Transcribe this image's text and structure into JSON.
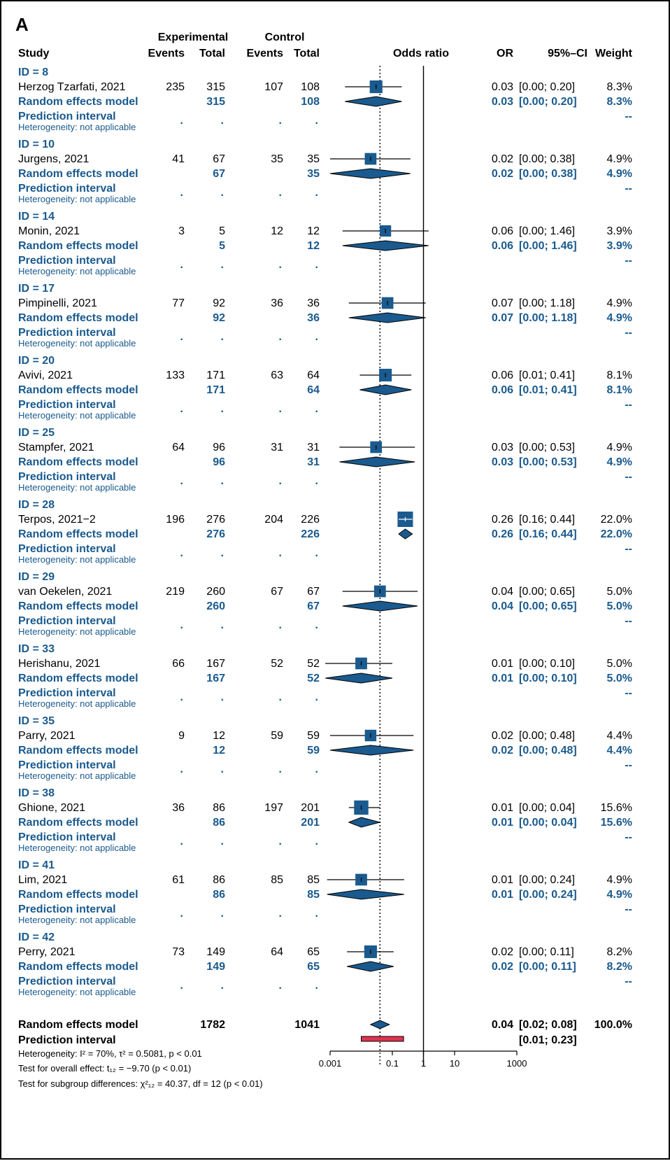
{
  "panel_label": "A",
  "header": {
    "experimental": "Experimental",
    "control": "Control",
    "study": "Study",
    "events": "Events",
    "total": "Total",
    "odds_ratio": "Odds ratio",
    "or": "OR",
    "ci": "95%–CI",
    "weight": "Weight"
  },
  "labels": {
    "re_model": "Random effects model",
    "pred_interval": "Prediction interval",
    "heterogeneity_na": "Heterogeneity: not applicable",
    "dot": ".",
    "dashes": "--"
  },
  "colors": {
    "blue": "#1a5a8e",
    "box": "#1a5a8e",
    "pred_bar": "#e0334f",
    "black": "#000000"
  },
  "chart_data": {
    "type": "forest",
    "x_scale": "log",
    "xlim": [
      0.001,
      1000
    ],
    "x_ticks": [
      "0.001",
      "0.1",
      "1",
      "10",
      "1000"
    ],
    "x_tick_values": [
      0.001,
      0.1,
      1,
      10,
      1000
    ],
    "null_line": 1,
    "pooled_line": 0.04,
    "groups": [
      {
        "id": "ID = 8",
        "study": "Herzog Tzarfati, 2021",
        "e_events": "235",
        "e_total": "315",
        "c_events": "107",
        "c_total": "108",
        "or": 0.03,
        "lo": 0.003,
        "hi": 0.2,
        "or_text": "0.03",
        "ci_text": "[0.00; 0.20]",
        "weight": "8.3%",
        "weight_num": 8.3
      },
      {
        "id": "ID = 10",
        "study": "Jurgens, 2021",
        "e_events": "41",
        "e_total": "67",
        "c_events": "35",
        "c_total": "35",
        "or": 0.02,
        "lo": 0.001,
        "hi": 0.38,
        "or_text": "0.02",
        "ci_text": "[0.00; 0.38]",
        "weight": "4.9%",
        "weight_num": 4.9
      },
      {
        "id": "ID = 14",
        "study": "Monin, 2021",
        "e_events": "3",
        "e_total": "5",
        "c_events": "12",
        "c_total": "12",
        "or": 0.06,
        "lo": 0.0025,
        "hi": 1.46,
        "or_text": "0.06",
        "ci_text": "[0.00; 1.46]",
        "weight": "3.9%",
        "weight_num": 3.9
      },
      {
        "id": "ID = 17",
        "study": "Pimpinelli, 2021",
        "e_events": "77",
        "e_total": "92",
        "c_events": "36",
        "c_total": "36",
        "or": 0.07,
        "lo": 0.004,
        "hi": 1.18,
        "or_text": "0.07",
        "ci_text": "[0.00; 1.18]",
        "weight": "4.9%",
        "weight_num": 4.9
      },
      {
        "id": "ID = 20",
        "study": "Avivi, 2021",
        "e_events": "133",
        "e_total": "171",
        "c_events": "63",
        "c_total": "64",
        "or": 0.06,
        "lo": 0.009,
        "hi": 0.41,
        "or_text": "0.06",
        "ci_text": "[0.01; 0.41]",
        "weight": "8.1%",
        "weight_num": 8.1
      },
      {
        "id": "ID = 25",
        "study": "Stampfer, 2021",
        "e_events": "64",
        "e_total": "96",
        "c_events": "31",
        "c_total": "31",
        "or": 0.03,
        "lo": 0.002,
        "hi": 0.53,
        "or_text": "0.03",
        "ci_text": "[0.00; 0.53]",
        "weight": "4.9%",
        "weight_num": 4.9
      },
      {
        "id": "ID = 28",
        "study": "Terpos, 2021−2",
        "e_events": "196",
        "e_total": "276",
        "c_events": "204",
        "c_total": "226",
        "or": 0.26,
        "lo": 0.16,
        "hi": 0.44,
        "or_text": "0.26",
        "ci_text": "[0.16; 0.44]",
        "weight": "22.0%",
        "weight_num": 22.0
      },
      {
        "id": "ID = 29",
        "study": "van Oekelen, 2021",
        "e_events": "219",
        "e_total": "260",
        "c_events": "67",
        "c_total": "67",
        "or": 0.04,
        "lo": 0.0025,
        "hi": 0.65,
        "or_text": "0.04",
        "ci_text": "[0.00; 0.65]",
        "weight": "5.0%",
        "weight_num": 5.0
      },
      {
        "id": "ID = 33",
        "study": "Herishanu, 2021",
        "e_events": "66",
        "e_total": "167",
        "c_events": "52",
        "c_total": "52",
        "or": 0.01,
        "lo": 0.0007,
        "hi": 0.1,
        "or_text": "0.01",
        "ci_text": "[0.00; 0.10]",
        "weight": "5.0%",
        "weight_num": 5.0
      },
      {
        "id": "ID = 35",
        "study": "Parry, 2021",
        "e_events": "9",
        "e_total": "12",
        "c_events": "59",
        "c_total": "59",
        "or": 0.02,
        "lo": 0.001,
        "hi": 0.48,
        "or_text": "0.02",
        "ci_text": "[0.00; 0.48]",
        "weight": "4.4%",
        "weight_num": 4.4
      },
      {
        "id": "ID = 38",
        "study": "Ghione, 2021",
        "e_events": "36",
        "e_total": "86",
        "c_events": "197",
        "c_total": "201",
        "or": 0.01,
        "lo": 0.004,
        "hi": 0.04,
        "or_text": "0.01",
        "ci_text": "[0.00; 0.04]",
        "weight": "15.6%",
        "weight_num": 15.6
      },
      {
        "id": "ID = 41",
        "study": "Lim, 2021",
        "e_events": "61",
        "e_total": "86",
        "c_events": "85",
        "c_total": "85",
        "or": 0.01,
        "lo": 0.0008,
        "hi": 0.24,
        "or_text": "0.01",
        "ci_text": "[0.00; 0.24]",
        "weight": "4.9%",
        "weight_num": 4.9
      },
      {
        "id": "ID = 42",
        "study": "Perry, 2021",
        "e_events": "73",
        "e_total": "149",
        "c_events": "64",
        "c_total": "65",
        "or": 0.02,
        "lo": 0.0035,
        "hi": 0.11,
        "or_text": "0.02",
        "ci_text": "[0.00; 0.11]",
        "weight": "8.2%",
        "weight_num": 8.2
      }
    ],
    "overall": {
      "label": "Random effects model",
      "e_total": "1782",
      "c_total": "1041",
      "or": 0.04,
      "lo": 0.02,
      "hi": 0.08,
      "or_text": "0.04",
      "ci_text": "[0.02; 0.08]",
      "weight": "100.0%"
    },
    "prediction": {
      "label": "Prediction interval",
      "lo": 0.01,
      "hi": 0.23,
      "ci_text": "[0.01; 0.23]"
    },
    "footnotes": {
      "heterogeneity": "Heterogeneity: I² = 70%, τ² = 0.5081, p < 0.01",
      "overall_effect": "Test for overall effect: t₁₂ = −9.70 (p < 0.01)",
      "subgroup": "Test for subgroup differences: χ²₁₂ = 40.37, df = 12 (p < 0.01)"
    }
  }
}
